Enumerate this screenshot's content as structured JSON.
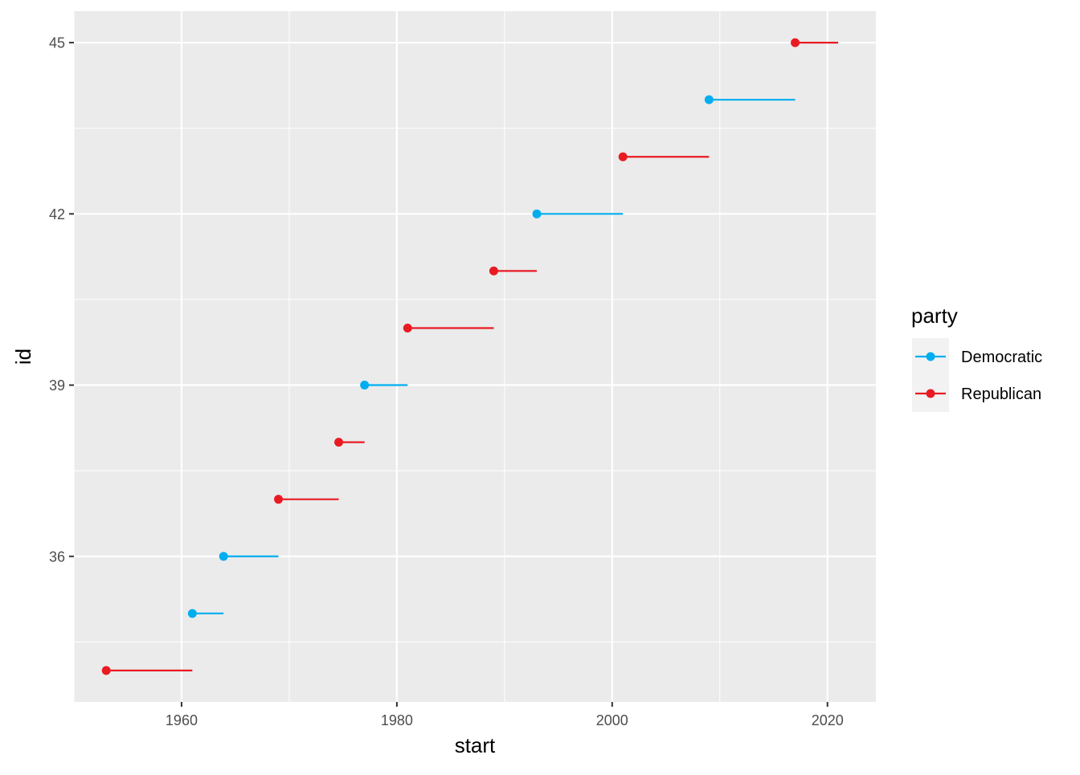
{
  "chart_data": {
    "type": "scatter",
    "xlabel": "start",
    "ylabel": "id",
    "xlim": [
      1950,
      2024.5
    ],
    "ylim": [
      33.45,
      45.55
    ],
    "x_ticks": [
      1960,
      1980,
      2000,
      2020
    ],
    "y_ticks": [
      36,
      39,
      42,
      45
    ],
    "grid": true,
    "legend": {
      "title": "party",
      "placement": "right",
      "entries": [
        {
          "name": "Democratic",
          "color": "#00AEEF"
        },
        {
          "name": "Republican",
          "color": "#E81B23"
        }
      ]
    },
    "colors": {
      "Democratic": "#00AEEF",
      "Republican": "#E81B23"
    },
    "series": [
      {
        "id": 34,
        "start": 1953,
        "end": 1961,
        "party": "Republican"
      },
      {
        "id": 35,
        "start": 1961,
        "end": 1963.9,
        "party": "Democratic"
      },
      {
        "id": 36,
        "start": 1963.9,
        "end": 1969,
        "party": "Democratic"
      },
      {
        "id": 37,
        "start": 1969,
        "end": 1974.6,
        "party": "Republican"
      },
      {
        "id": 38,
        "start": 1974.6,
        "end": 1977,
        "party": "Republican"
      },
      {
        "id": 39,
        "start": 1977,
        "end": 1981,
        "party": "Democratic"
      },
      {
        "id": 40,
        "start": 1981,
        "end": 1989,
        "party": "Republican"
      },
      {
        "id": 41,
        "start": 1989,
        "end": 1993,
        "party": "Republican"
      },
      {
        "id": 42,
        "start": 1993,
        "end": 2001,
        "party": "Democratic"
      },
      {
        "id": 43,
        "start": 2001,
        "end": 2009,
        "party": "Republican"
      },
      {
        "id": 44,
        "start": 2009,
        "end": 2017,
        "party": "Democratic"
      },
      {
        "id": 45,
        "start": 2017,
        "end": 2021,
        "party": "Republican"
      }
    ]
  }
}
